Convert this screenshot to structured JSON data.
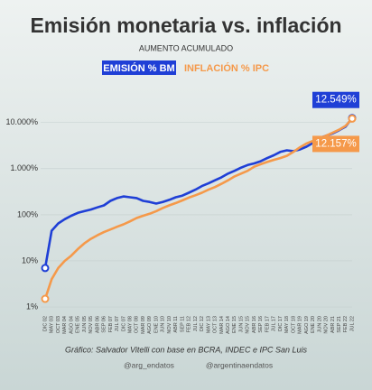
{
  "chart_data": {
    "type": "line",
    "title": "Emisión monetaria vs. inflación",
    "subtitle": "AUMENTO ACUMULADO",
    "categories": [
      "DIC 02",
      "MAY 03",
      "OCT 03",
      "MAR 04",
      "AGO 04",
      "ENE 05",
      "JUN 05",
      "NOV 05",
      "ABR 06",
      "SEP 06",
      "FEB 07",
      "JUL 07",
      "DIC 07",
      "MAY 08",
      "OCT 08",
      "MAR 09",
      "AGO 09",
      "ENE 10",
      "JUN 10",
      "NOV 10",
      "ABR 11",
      "SEP 11",
      "FEB 12",
      "JUL 12",
      "DIC 12",
      "MAY 13",
      "OCT 13",
      "MAR 14",
      "AGO 14",
      "ENE 15",
      "JUN 15",
      "NOV 15",
      "ABR 16",
      "SEP 16",
      "FEB 17",
      "JUL 17",
      "DIC 17",
      "MAY 18",
      "OCT 18",
      "MAR 19",
      "AGO 19",
      "ENE 20",
      "JUN 20",
      "NOV 20",
      "ABR 21",
      "SEP 21",
      "FEB 22",
      "JUL 22"
    ],
    "series": [
      {
        "name": "EMISIÓN % BM",
        "color": "#1f3fd6",
        "values": [
          7,
          45,
          65,
          80,
          95,
          110,
          120,
          130,
          145,
          160,
          200,
          230,
          250,
          240,
          230,
          200,
          190,
          175,
          190,
          210,
          240,
          260,
          300,
          350,
          420,
          480,
          560,
          650,
          780,
          900,
          1050,
          1200,
          1300,
          1450,
          1700,
          1950,
          2300,
          2500,
          2400,
          2600,
          3000,
          3600,
          4600,
          5200,
          5800,
          6800,
          8200,
          12549
        ],
        "value_labels": [
          null,
          null,
          null,
          null,
          null,
          null,
          null,
          null,
          null,
          null,
          null,
          null,
          null,
          null,
          null,
          null,
          null,
          null,
          null,
          null,
          null,
          null,
          null,
          null,
          null,
          null,
          null,
          null,
          null,
          null,
          null,
          null,
          null,
          null,
          null,
          null,
          null,
          null,
          null,
          null,
          null,
          null,
          null,
          null,
          null,
          null,
          null,
          "12.549%"
        ]
      },
      {
        "name": "INFLACIÓN % IPC",
        "color": "#f5994a",
        "values": [
          1.5,
          4,
          7,
          10,
          13,
          18,
          24,
          30,
          36,
          42,
          48,
          55,
          62,
          72,
          85,
          95,
          105,
          120,
          140,
          160,
          180,
          205,
          235,
          265,
          300,
          350,
          400,
          470,
          560,
          680,
          780,
          900,
          1100,
          1250,
          1400,
          1550,
          1700,
          1900,
          2300,
          2900,
          3500,
          4000,
          4500,
          5200,
          6000,
          7000,
          8500,
          12157
        ],
        "value_labels": [
          null,
          null,
          null,
          null,
          null,
          null,
          null,
          null,
          null,
          null,
          null,
          null,
          null,
          null,
          null,
          null,
          null,
          null,
          null,
          null,
          null,
          null,
          null,
          null,
          null,
          null,
          null,
          null,
          null,
          null,
          null,
          null,
          null,
          null,
          null,
          null,
          null,
          null,
          null,
          null,
          null,
          null,
          null,
          null,
          null,
          null,
          null,
          "12.157%"
        ]
      }
    ],
    "log_scale": true,
    "ylim": [
      0.8,
      40000
    ],
    "yticks": [
      {
        "value": 1,
        "label": "1%"
      },
      {
        "value": 10,
        "label": "10%"
      },
      {
        "value": 100,
        "label": "100%"
      },
      {
        "value": 1000,
        "label": "1.000%"
      },
      {
        "value": 10000,
        "label": "10.000%"
      }
    ],
    "source": "Gráfico: Salvador Vitelli con base en BCRA, INDEC e IPC San Luis",
    "handles": [
      "@arg_endatos",
      "@argentinaendatos"
    ]
  }
}
